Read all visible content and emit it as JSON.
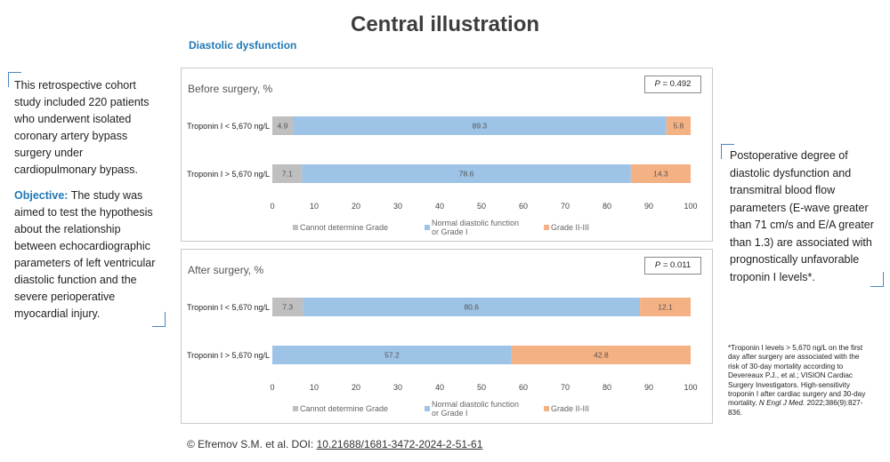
{
  "title": "Central illustration",
  "subtitle": "Diastolic dysfunction",
  "left": {
    "intro": "This retrospective cohort study included 220 patients who underwent isolated coronary artery bypass surgery under cardiopulmonary bypass.",
    "objective_label": "Objective:",
    "objective_text": "The study was aimed to test the hypothesis about the relationship between echocardiographic parameters of left ventricular diastolic function and the severe perioperative myocardial injury."
  },
  "right": {
    "text": "Postoperative degree of diastolic dysfunction and transmitral blood flow parameters (E-wave greater than 71 cm/s and E/A greater than 1.3) are associated with prognostically unfavorable troponin I levels*."
  },
  "footnote": {
    "text": "*Troponin I levels > 5,670 ng/L on the first day after surgery are associated with the risk of 30-day mortality according to Devereaux P.J., et al.; VISION Cardiac Surgery Investigators. High-sensitivity troponin I after cardiac surgery and 30-day mortality.",
    "journal": "N Engl J Med.",
    "citation_tail": "2022;386(9):827-836."
  },
  "credit": {
    "prefix": "© Efremov S.M. et al. DOI:",
    "doi": "10.21688/1681-3472-2024-2-51-61"
  },
  "colors": {
    "cannot": "#bfbfbf",
    "normal": "#9dc3e6",
    "grade": "#f4b183",
    "accent": "#1f78b4"
  },
  "chart_data": [
    {
      "type": "bar",
      "orientation": "horizontal",
      "stacked": true,
      "title": "Before surgery, %",
      "p_label": "P",
      "p_value": "= 0.492",
      "categories": [
        "Troponin I < 5,670 ng/L",
        "Troponin I > 5,670 ng/L"
      ],
      "series": [
        {
          "name": "Cannot determine Grade",
          "values": [
            4.9,
            7.1
          ],
          "labels": [
            "4.9",
            "7.1"
          ]
        },
        {
          "name": "Normal diastolic function or Grade I",
          "values": [
            89.3,
            78.6
          ],
          "labels": [
            "89.3",
            "78.6"
          ]
        },
        {
          "name": "Grade II-III",
          "values": [
            5.8,
            14.3
          ],
          "labels": [
            "5.8",
            "14.3"
          ]
        }
      ],
      "legend": [
        "Cannot determine Grade",
        "Normal diastolic function",
        "or Grade I",
        "Grade II-III"
      ],
      "xlim": [
        0,
        100
      ],
      "xticks": [
        "0",
        "10",
        "20",
        "30",
        "40",
        "50",
        "60",
        "70",
        "80",
        "90",
        "100"
      ],
      "legend_position": "bottom"
    },
    {
      "type": "bar",
      "orientation": "horizontal",
      "stacked": true,
      "title": "After surgery, %",
      "p_label": "P",
      "p_value": "= 0.011",
      "categories": [
        "Troponin I < 5,670 ng/L",
        "Troponin I > 5,670 ng/L"
      ],
      "series": [
        {
          "name": "Cannot determine Grade",
          "values": [
            7.3,
            0
          ],
          "labels": [
            "7.3",
            ""
          ]
        },
        {
          "name": "Normal diastolic function or Grade I",
          "values": [
            80.6,
            57.2
          ],
          "labels": [
            "80.6",
            "57.2"
          ]
        },
        {
          "name": "Grade II-III",
          "values": [
            12.1,
            42.8
          ],
          "labels": [
            "12.1",
            "42.8"
          ]
        }
      ],
      "legend": [
        "Cannot determine Grade",
        "Normal diastolic function",
        "or Grade I",
        "Grade II-III"
      ],
      "xlim": [
        0,
        100
      ],
      "xticks": [
        "0",
        "10",
        "20",
        "30",
        "40",
        "50",
        "60",
        "70",
        "80",
        "90",
        "100"
      ],
      "legend_position": "bottom"
    }
  ]
}
